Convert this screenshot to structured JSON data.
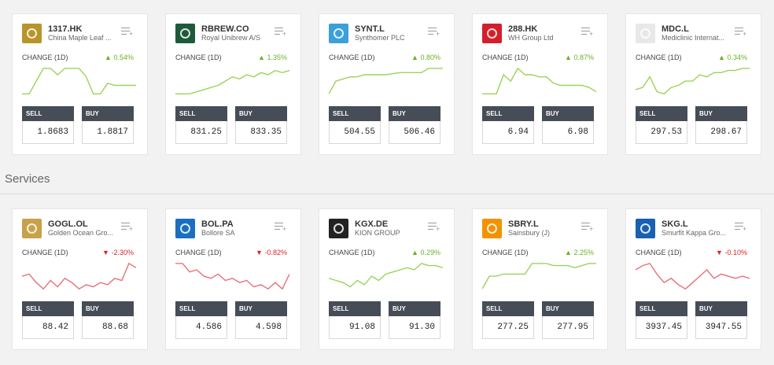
{
  "section": {
    "title": "Services"
  },
  "labels": {
    "change": "CHANGE (1D)",
    "sell": "SELL",
    "buy": "BUY"
  },
  "colors": {
    "up": "#6bb124",
    "down": "#d9232e",
    "button_header": "#474d57"
  },
  "rows": [
    [
      {
        "symbol": "1317.HK",
        "name": "China Maple Leaf ...",
        "change": "0.54%",
        "direction": "up",
        "sell": "1.8683",
        "buy": "1.8817",
        "logo_color": "#b8952a",
        "logo_icon": "maple-leaf-logo-icon",
        "trend": [
          2,
          2,
          14,
          26,
          26,
          20,
          26,
          26,
          26,
          18,
          2,
          2,
          12,
          10,
          10,
          10,
          10
        ]
      },
      {
        "symbol": "RBREW.CO",
        "name": "Royal Unibrew A/S",
        "change": "1.35%",
        "direction": "up",
        "sell": "831.25",
        "buy": "833.35",
        "logo_color": "#1d5a3a",
        "logo_icon": "unibrew-logo-icon",
        "trend": [
          2,
          2,
          2,
          4,
          6,
          8,
          10,
          14,
          18,
          16,
          20,
          18,
          22,
          20,
          24,
          22,
          24
        ]
      },
      {
        "symbol": "SYNT.L",
        "name": "Synthomer PLC",
        "change": "0.80%",
        "direction": "up",
        "sell": "504.55",
        "buy": "506.46",
        "logo_color": "#3aa0dc",
        "logo_icon": "synthomer-logo-icon",
        "trend": [
          2,
          14,
          16,
          18,
          18,
          20,
          20,
          20,
          20,
          21,
          22,
          22,
          22,
          22,
          26,
          26,
          26
        ]
      },
      {
        "symbol": "288.HK",
        "name": "WH Group Ltd",
        "change": "0.87%",
        "direction": "up",
        "sell": "6.94",
        "buy": "6.98",
        "logo_color": "#d41f2b",
        "logo_icon": "wh-group-logo-icon",
        "trend": [
          2,
          2,
          2,
          20,
          14,
          26,
          20,
          20,
          18,
          18,
          12,
          10,
          10,
          10,
          10,
          8,
          4
        ]
      },
      {
        "symbol": "MDC.L",
        "name": "Mediclinic Internat...",
        "change": "0.34%",
        "direction": "up",
        "sell": "297.53",
        "buy": "298.67",
        "logo_color": "#e8e8e8",
        "logo_icon": "mediclinic-logo-icon",
        "trend": [
          6,
          8,
          18,
          4,
          2,
          8,
          10,
          14,
          14,
          20,
          18,
          22,
          22,
          24,
          24,
          26,
          26
        ]
      }
    ],
    [
      {
        "symbol": "GOGL.OL",
        "name": "Golden Ocean Gro...",
        "change": "-2.30%",
        "direction": "down",
        "sell": "88.42",
        "buy": "88.68",
        "logo_color": "#c8a24a",
        "logo_icon": "golden-ocean-logo-icon",
        "trend": [
          14,
          16,
          8,
          2,
          10,
          4,
          12,
          8,
          2,
          6,
          4,
          8,
          6,
          12,
          10,
          26,
          22
        ]
      },
      {
        "symbol": "BOL.PA",
        "name": "Bollore SA",
        "change": "-0.82%",
        "direction": "down",
        "sell": "4.586",
        "buy": "4.598",
        "logo_color": "#1a6fc0",
        "logo_icon": "bollore-logo-icon",
        "trend": [
          26,
          26,
          18,
          20,
          14,
          12,
          16,
          10,
          12,
          8,
          10,
          4,
          6,
          2,
          8,
          2,
          16
        ]
      },
      {
        "symbol": "KGX.DE",
        "name": "KION GROUP",
        "change": "0.29%",
        "direction": "up",
        "sell": "91.08",
        "buy": "91.30",
        "logo_color": "#222222",
        "logo_icon": "kion-logo-icon",
        "trend": [
          12,
          10,
          8,
          4,
          10,
          6,
          14,
          10,
          16,
          18,
          20,
          22,
          20,
          26,
          24,
          24,
          22
        ]
      },
      {
        "symbol": "SBRY.L",
        "name": "Sainsbury (J)",
        "change": "2.25%",
        "direction": "up",
        "sell": "277.25",
        "buy": "277.95",
        "logo_color": "#f39200",
        "logo_icon": "sainsbury-logo-icon",
        "trend": [
          2,
          14,
          14,
          16,
          16,
          16,
          16,
          26,
          26,
          26,
          24,
          24,
          24,
          22,
          24,
          26,
          26
        ]
      },
      {
        "symbol": "SKG.L",
        "name": "Smurfit Kappa Gro...",
        "change": "-0.10%",
        "direction": "down",
        "sell": "3937.45",
        "buy": "3947.55",
        "logo_color": "#1a5fb0",
        "logo_icon": "smurfit-kappa-logo-icon",
        "trend": [
          20,
          24,
          26,
          16,
          8,
          12,
          6,
          2,
          8,
          14,
          20,
          12,
          16,
          14,
          12,
          14,
          12
        ]
      }
    ]
  ]
}
